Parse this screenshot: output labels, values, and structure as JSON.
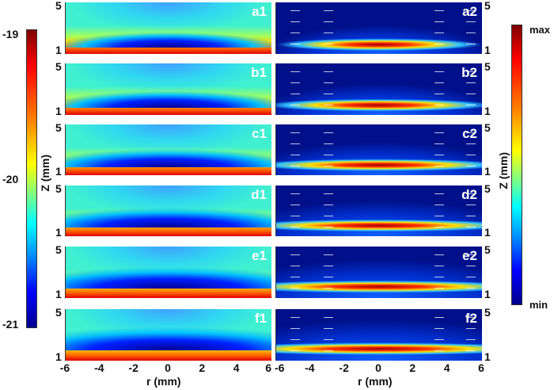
{
  "chart_data": {
    "type": "heatmap",
    "panels_left": [
      "a1",
      "b1",
      "c1",
      "d1",
      "e1",
      "f1"
    ],
    "panels_right": [
      "a2",
      "b2",
      "c2",
      "d2",
      "e2",
      "f2"
    ],
    "xlabel": "r (mm)",
    "ylabel": "Z (mm)",
    "xlim": [
      -6,
      6
    ],
    "ylim": [
      1,
      5
    ],
    "x_ticks": [
      "-6",
      "-4",
      "-2",
      "0",
      "2",
      "4",
      "6"
    ],
    "y_ticks": [
      "5",
      "1"
    ],
    "colorbar_left": {
      "ticks": [
        "-19",
        "-20",
        "-21"
      ],
      "range": [
        -21,
        -19
      ]
    },
    "colorbar_right": {
      "ticks": [
        "max",
        "min"
      ]
    },
    "colormap": "jet"
  }
}
